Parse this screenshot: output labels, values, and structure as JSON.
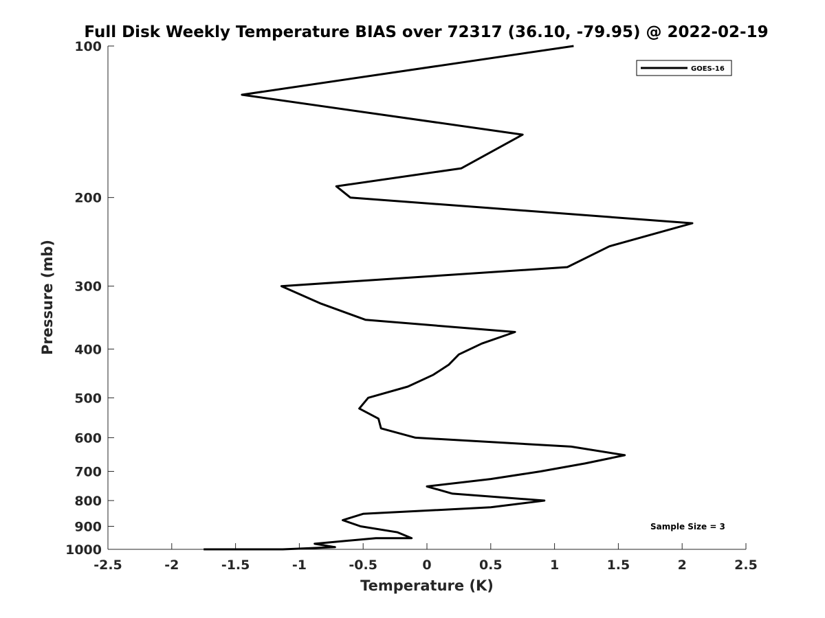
{
  "chart_data": {
    "type": "line",
    "title": "Full Disk Weekly Temperature BIAS over 72317 (36.10, -79.95) @ 2022-02-19",
    "xlabel": "Temperature (K)",
    "ylabel": "Pressure (mb)",
    "xlim": [
      -2.5,
      2.5
    ],
    "ylim": [
      100,
      1000
    ],
    "y_scale": "log",
    "y_reversed": true,
    "grid": false,
    "legend_position": "top-right",
    "x_ticks": [
      "-2.5",
      "-2",
      "-1.5",
      "-1",
      "-0.5",
      "0",
      "0.5",
      "1",
      "1.5",
      "2",
      "2.5"
    ],
    "y_ticks": [
      "100",
      "200",
      "300",
      "400",
      "500",
      "600",
      "700",
      "800",
      "900",
      "1000"
    ],
    "series": [
      {
        "name": "GOES-16",
        "color": "#000000",
        "x": [
          1.15,
          -1.45,
          0.75,
          0.27,
          -0.71,
          -0.6,
          2.08,
          1.43,
          1.1,
          -1.14,
          -0.83,
          -0.48,
          0.69,
          0.43,
          0.25,
          0.17,
          0.05,
          -0.15,
          -0.46,
          -0.53,
          -0.38,
          -0.36,
          -0.09,
          1.13,
          1.55,
          1.24,
          0.89,
          0.5,
          0.0,
          0.2,
          0.92,
          0.5,
          -0.5,
          -0.66,
          -0.52,
          -0.23,
          -0.12,
          -0.4,
          -0.88,
          -0.72,
          -1.13,
          -1.75
        ],
        "y": [
          100,
          125,
          150,
          175,
          190,
          200,
          225,
          250,
          275,
          300,
          325,
          350,
          370,
          390,
          410,
          430,
          450,
          475,
          500,
          525,
          550,
          575,
          600,
          625,
          650,
          675,
          700,
          725,
          750,
          775,
          800,
          825,
          850,
          875,
          900,
          925,
          950,
          950,
          975,
          990,
          1000,
          1000
        ]
      }
    ],
    "annotations": [
      "Sample Size = 3"
    ]
  }
}
